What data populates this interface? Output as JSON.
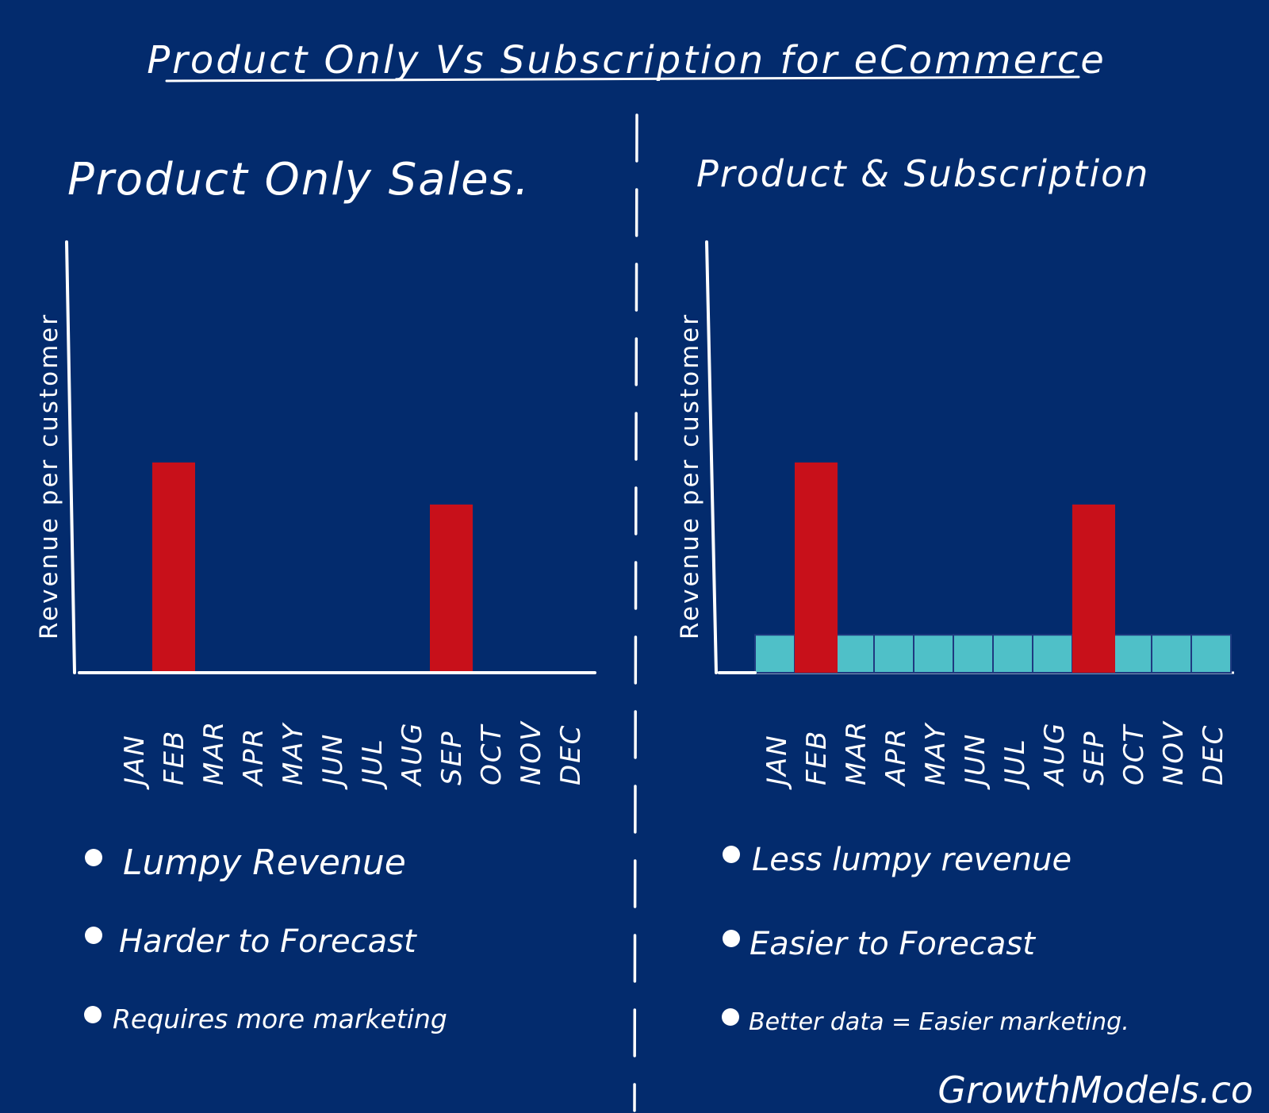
{
  "title": "Product Only Vs Subscription for eCommerce",
  "footer": "GrowthModels.co",
  "colors": {
    "background": "#032b6d",
    "ink": "#ffffff",
    "product_bar": "#c8101a",
    "subscription_bar": "#4fc0c8",
    "subscription_divider": "#1f3a80"
  },
  "chart_data": [
    {
      "type": "bar",
      "title": "Product Only Sales.",
      "ylabel": "Revenue per customer",
      "categories": [
        "JAN",
        "FEB",
        "MAR",
        "APR",
        "MAY",
        "JUN",
        "JUL",
        "AUG",
        "SEP",
        "OCT",
        "NOV",
        "DEC"
      ],
      "ylim": [
        0,
        10
      ],
      "series": [
        {
          "name": "",
          "color": "#c8101a",
          "values": [
            0,
            5,
            0,
            0,
            0,
            0,
            0,
            0,
            4,
            0,
            0,
            0
          ]
        }
      ],
      "bullets": [
        "Lumpy Revenue",
        "Harder to Forecast",
        "Requires more marketing"
      ]
    },
    {
      "type": "bar",
      "title": "Product & Subscription",
      "ylabel": "Revenue per customer",
      "categories": [
        "JAN",
        "FEB",
        "MAR",
        "APR",
        "MAY",
        "JUN",
        "JUL",
        "AUG",
        "SEP",
        "OCT",
        "NOV",
        "DEC"
      ],
      "ylim": [
        0,
        10
      ],
      "series": [
        {
          "name": "",
          "color": "#4fc0c8",
          "values": [
            0.9,
            0.9,
            0.9,
            0.9,
            0.9,
            0.9,
            0.9,
            0.9,
            0.9,
            0.9,
            0.9,
            0.9
          ]
        },
        {
          "name": "",
          "color": "#c8101a",
          "values": [
            0,
            5,
            0,
            0,
            0,
            0,
            0,
            0,
            4,
            0,
            0,
            0
          ]
        }
      ],
      "bullets": [
        "Less lumpy revenue",
        "Easier to Forecast",
        "Better data = Easier marketing."
      ]
    }
  ]
}
